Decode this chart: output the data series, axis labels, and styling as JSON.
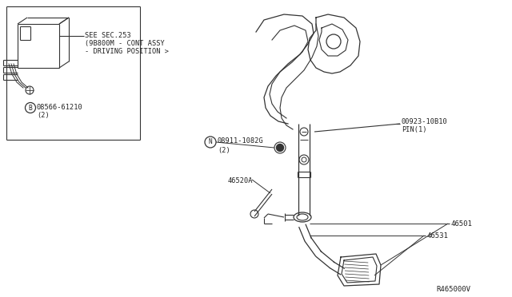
{
  "bg_color": "#ffffff",
  "line_color": "#333333",
  "text_color": "#222222",
  "fig_width": 6.4,
  "fig_height": 3.72,
  "dpi": 100,
  "diagram_ref": "R465000V",
  "parts": {
    "pin": {
      "number": "00923-10B10",
      "suffix": "PIN(1)"
    },
    "bolt": {
      "number": "08911-1082G",
      "suffix": "(2)"
    },
    "clip": {
      "number": "08566-61210",
      "suffix": "(2)"
    },
    "pedal_assy": {
      "number": "46501"
    },
    "pedal_pad": {
      "number": "46531"
    },
    "pedal_arm": {
      "number": "46520A"
    }
  },
  "sec_note_line1": "SEE SEC.253",
  "sec_note_line2": "(9B800M - CONT ASSY",
  "sec_note_line3": "- DRIVING POSITION >"
}
